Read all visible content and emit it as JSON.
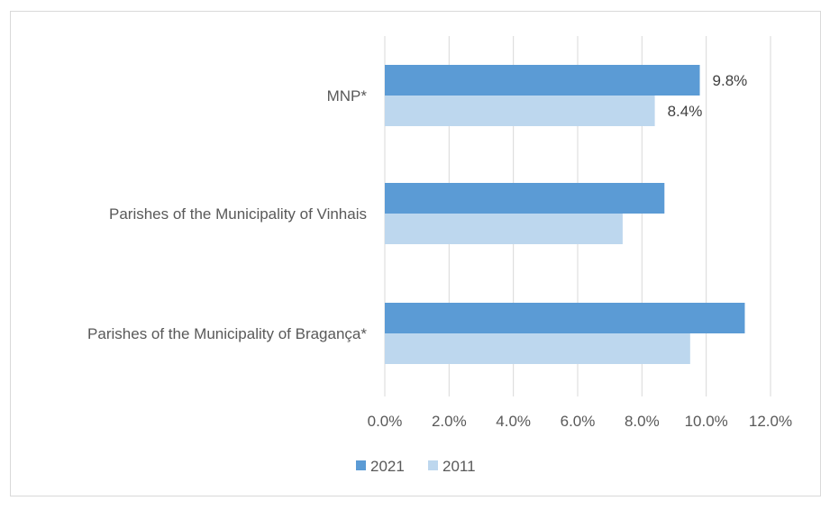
{
  "chart_data": {
    "type": "bar",
    "orientation": "horizontal",
    "categories": [
      "MNP*",
      "Parishes of the Municipality of Vinhais",
      "Parishes of the Municipality of Bragança*"
    ],
    "series": [
      {
        "name": "2021",
        "color": "#5b9bd5",
        "values": [
          9.8,
          8.7,
          11.2
        ],
        "data_labels": [
          "9.8%",
          null,
          null
        ]
      },
      {
        "name": "2011",
        "color": "#bdd7ee",
        "values": [
          8.4,
          7.4,
          9.5
        ],
        "data_labels": [
          "8.4%",
          null,
          null
        ]
      }
    ],
    "x_ticks": [
      0,
      2,
      4,
      6,
      8,
      10,
      12
    ],
    "x_tick_labels": [
      "0.0%",
      "2.0%",
      "4.0%",
      "6.0%",
      "8.0%",
      "10.0%",
      "12.0%"
    ],
    "xlim": [
      0,
      12
    ],
    "title": "",
    "xlabel": "",
    "ylabel": "",
    "grid": "vertical",
    "legend_position": "bottom"
  }
}
